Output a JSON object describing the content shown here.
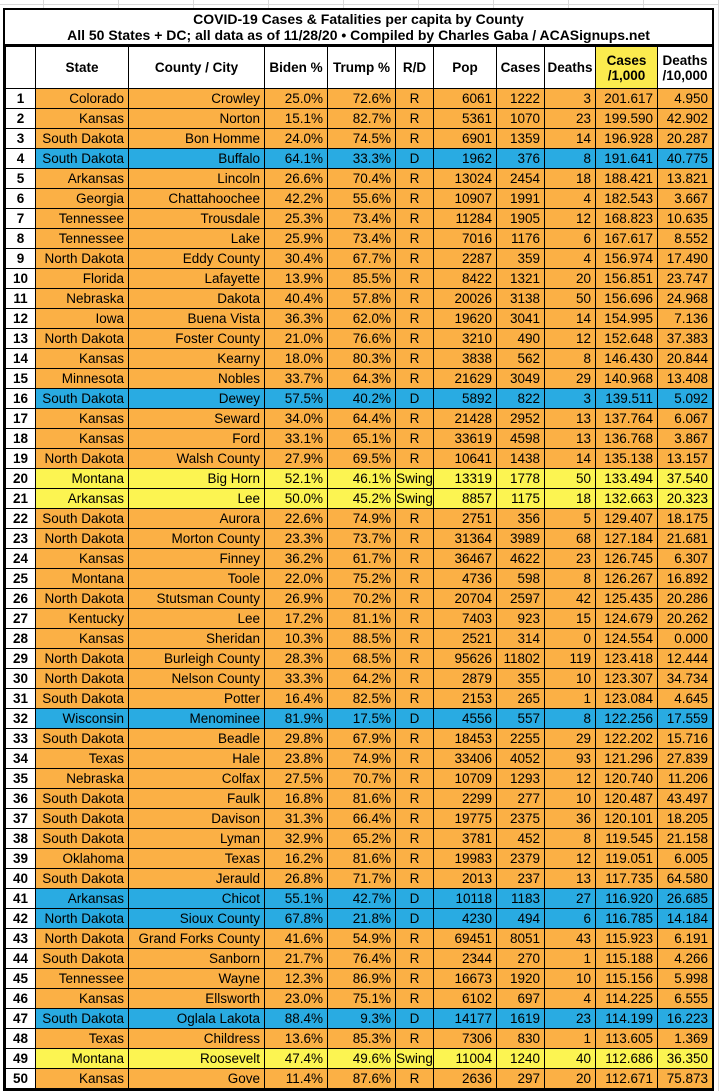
{
  "title": {
    "line1": "COVID-19 Cases & Fatalities per capita by County",
    "line2": "All 50 States + DC; all data as of 11/28/20  • Compiled by Charles Gaba / ACASignups.net"
  },
  "colors": {
    "republican_row": "#FBB045",
    "democrat_row": "#29ABE2",
    "swing_row": "#FCF451",
    "cases_header_highlight": "#FBEB4E",
    "border": "#000000",
    "text": "#000000"
  },
  "chart_data": {
    "type": "table",
    "title": "COVID-19 Cases & Fatalities per capita by County",
    "subtitle": "All 50 States + DC; all data as of 11/28/20  • Compiled by Charles Gaba / ACASignups.net",
    "columns": [
      "",
      "State",
      "County / City",
      "Biden %",
      "Trump %",
      "R/D",
      "Pop",
      "Cases",
      "Deaths",
      "Cases\n/1,000",
      "Deaths\n/10,000"
    ],
    "rows": [
      [
        "1",
        "Colorado",
        "Crowley",
        "25.0%",
        "72.6%",
        "R",
        "6061",
        "1222",
        "3",
        "201.617",
        "4.950"
      ],
      [
        "2",
        "Kansas",
        "Norton",
        "15.1%",
        "82.7%",
        "R",
        "5361",
        "1070",
        "23",
        "199.590",
        "42.902"
      ],
      [
        "3",
        "South Dakota",
        "Bon Homme",
        "24.0%",
        "74.5%",
        "R",
        "6901",
        "1359",
        "14",
        "196.928",
        "20.287"
      ],
      [
        "4",
        "South Dakota",
        "Buffalo",
        "64.1%",
        "33.3%",
        "D",
        "1962",
        "376",
        "8",
        "191.641",
        "40.775"
      ],
      [
        "5",
        "Arkansas",
        "Lincoln",
        "26.6%",
        "70.4%",
        "R",
        "13024",
        "2454",
        "18",
        "188.421",
        "13.821"
      ],
      [
        "6",
        "Georgia",
        "Chattahoochee",
        "42.2%",
        "55.6%",
        "R",
        "10907",
        "1991",
        "4",
        "182.543",
        "3.667"
      ],
      [
        "7",
        "Tennessee",
        "Trousdale",
        "25.3%",
        "73.4%",
        "R",
        "11284",
        "1905",
        "12",
        "168.823",
        "10.635"
      ],
      [
        "8",
        "Tennessee",
        "Lake",
        "25.9%",
        "73.4%",
        "R",
        "7016",
        "1176",
        "6",
        "167.617",
        "8.552"
      ],
      [
        "9",
        "North Dakota",
        "Eddy County",
        "30.4%",
        "67.7%",
        "R",
        "2287",
        "359",
        "4",
        "156.974",
        "17.490"
      ],
      [
        "10",
        "Florida",
        "Lafayette",
        "13.9%",
        "85.5%",
        "R",
        "8422",
        "1321",
        "20",
        "156.851",
        "23.747"
      ],
      [
        "11",
        "Nebraska",
        "Dakota",
        "40.4%",
        "57.8%",
        "R",
        "20026",
        "3138",
        "50",
        "156.696",
        "24.968"
      ],
      [
        "12",
        "Iowa",
        "Buena Vista",
        "36.3%",
        "62.0%",
        "R",
        "19620",
        "3041",
        "14",
        "154.995",
        "7.136"
      ],
      [
        "13",
        "North Dakota",
        "Foster County",
        "21.0%",
        "76.6%",
        "R",
        "3210",
        "490",
        "12",
        "152.648",
        "37.383"
      ],
      [
        "14",
        "Kansas",
        "Kearny",
        "18.0%",
        "80.3%",
        "R",
        "3838",
        "562",
        "8",
        "146.430",
        "20.844"
      ],
      [
        "15",
        "Minnesota",
        "Nobles",
        "33.7%",
        "64.3%",
        "R",
        "21629",
        "3049",
        "29",
        "140.968",
        "13.408"
      ],
      [
        "16",
        "South Dakota",
        "Dewey",
        "57.5%",
        "40.2%",
        "D",
        "5892",
        "822",
        "3",
        "139.511",
        "5.092"
      ],
      [
        "17",
        "Kansas",
        "Seward",
        "34.0%",
        "64.4%",
        "R",
        "21428",
        "2952",
        "13",
        "137.764",
        "6.067"
      ],
      [
        "18",
        "Kansas",
        "Ford",
        "33.1%",
        "65.1%",
        "R",
        "33619",
        "4598",
        "13",
        "136.768",
        "3.867"
      ],
      [
        "19",
        "North Dakota",
        "Walsh County",
        "27.9%",
        "69.5%",
        "R",
        "10641",
        "1438",
        "14",
        "135.138",
        "13.157"
      ],
      [
        "20",
        "Montana",
        "Big Horn",
        "52.1%",
        "46.1%",
        "Swing",
        "13319",
        "1778",
        "50",
        "133.494",
        "37.540"
      ],
      [
        "21",
        "Arkansas",
        "Lee",
        "50.0%",
        "45.2%",
        "Swing",
        "8857",
        "1175",
        "18",
        "132.663",
        "20.323"
      ],
      [
        "22",
        "South Dakota",
        "Aurora",
        "22.6%",
        "74.9%",
        "R",
        "2751",
        "356",
        "5",
        "129.407",
        "18.175"
      ],
      [
        "23",
        "North Dakota",
        "Morton County",
        "23.3%",
        "73.7%",
        "R",
        "31364",
        "3989",
        "68",
        "127.184",
        "21.681"
      ],
      [
        "24",
        "Kansas",
        "Finney",
        "36.2%",
        "61.7%",
        "R",
        "36467",
        "4622",
        "23",
        "126.745",
        "6.307"
      ],
      [
        "25",
        "Montana",
        "Toole",
        "22.0%",
        "75.2%",
        "R",
        "4736",
        "598",
        "8",
        "126.267",
        "16.892"
      ],
      [
        "26",
        "North Dakota",
        "Stutsman County",
        "26.9%",
        "70.2%",
        "R",
        "20704",
        "2597",
        "42",
        "125.435",
        "20.286"
      ],
      [
        "27",
        "Kentucky",
        "Lee",
        "17.2%",
        "81.1%",
        "R",
        "7403",
        "923",
        "15",
        "124.679",
        "20.262"
      ],
      [
        "28",
        "Kansas",
        "Sheridan",
        "10.3%",
        "88.5%",
        "R",
        "2521",
        "314",
        "0",
        "124.554",
        "0.000"
      ],
      [
        "29",
        "North Dakota",
        "Burleigh County",
        "28.3%",
        "68.5%",
        "R",
        "95626",
        "11802",
        "119",
        "123.418",
        "12.444"
      ],
      [
        "30",
        "North Dakota",
        "Nelson County",
        "33.3%",
        "64.2%",
        "R",
        "2879",
        "355",
        "10",
        "123.307",
        "34.734"
      ],
      [
        "31",
        "South Dakota",
        "Potter",
        "16.4%",
        "82.5%",
        "R",
        "2153",
        "265",
        "1",
        "123.084",
        "4.645"
      ],
      [
        "32",
        "Wisconsin",
        "Menominee",
        "81.9%",
        "17.5%",
        "D",
        "4556",
        "557",
        "8",
        "122.256",
        "17.559"
      ],
      [
        "33",
        "South Dakota",
        "Beadle",
        "29.8%",
        "67.9%",
        "R",
        "18453",
        "2255",
        "29",
        "122.202",
        "15.716"
      ],
      [
        "34",
        "Texas",
        "Hale",
        "23.8%",
        "74.9%",
        "R",
        "33406",
        "4052",
        "93",
        "121.296",
        "27.839"
      ],
      [
        "35",
        "Nebraska",
        "Colfax",
        "27.5%",
        "70.7%",
        "R",
        "10709",
        "1293",
        "12",
        "120.740",
        "11.206"
      ],
      [
        "36",
        "South Dakota",
        "Faulk",
        "16.8%",
        "81.6%",
        "R",
        "2299",
        "277",
        "10",
        "120.487",
        "43.497"
      ],
      [
        "37",
        "South Dakota",
        "Davison",
        "31.3%",
        "66.4%",
        "R",
        "19775",
        "2375",
        "36",
        "120.101",
        "18.205"
      ],
      [
        "38",
        "South Dakota",
        "Lyman",
        "32.9%",
        "65.2%",
        "R",
        "3781",
        "452",
        "8",
        "119.545",
        "21.158"
      ],
      [
        "39",
        "Oklahoma",
        "Texas",
        "16.2%",
        "81.6%",
        "R",
        "19983",
        "2379",
        "12",
        "119.051",
        "6.005"
      ],
      [
        "40",
        "South Dakota",
        "Jerauld",
        "26.8%",
        "71.7%",
        "R",
        "2013",
        "237",
        "13",
        "117.735",
        "64.580"
      ],
      [
        "41",
        "Arkansas",
        "Chicot",
        "55.1%",
        "42.7%",
        "D",
        "10118",
        "1183",
        "27",
        "116.920",
        "26.685"
      ],
      [
        "42",
        "North Dakota",
        "Sioux County",
        "67.8%",
        "21.8%",
        "D",
        "4230",
        "494",
        "6",
        "116.785",
        "14.184"
      ],
      [
        "43",
        "North Dakota",
        "Grand Forks County",
        "41.6%",
        "54.9%",
        "R",
        "69451",
        "8051",
        "43",
        "115.923",
        "6.191"
      ],
      [
        "44",
        "South Dakota",
        "Sanborn",
        "21.7%",
        "76.4%",
        "R",
        "2344",
        "270",
        "1",
        "115.188",
        "4.266"
      ],
      [
        "45",
        "Tennessee",
        "Wayne",
        "12.3%",
        "86.9%",
        "R",
        "16673",
        "1920",
        "10",
        "115.156",
        "5.998"
      ],
      [
        "46",
        "Kansas",
        "Ellsworth",
        "23.0%",
        "75.1%",
        "R",
        "6102",
        "697",
        "4",
        "114.225",
        "6.555"
      ],
      [
        "47",
        "South Dakota",
        "Oglala Lakota",
        "88.4%",
        "9.3%",
        "D",
        "14177",
        "1619",
        "23",
        "114.199",
        "16.223"
      ],
      [
        "48",
        "Texas",
        "Childress",
        "13.6%",
        "85.3%",
        "R",
        "7306",
        "830",
        "1",
        "113.605",
        "1.369"
      ],
      [
        "49",
        "Montana",
        "Roosevelt",
        "47.4%",
        "49.6%",
        "Swing",
        "11004",
        "1240",
        "40",
        "112.686",
        "36.350"
      ],
      [
        "50",
        "Kansas",
        "Gove",
        "11.4%",
        "87.6%",
        "R",
        "2636",
        "297",
        "20",
        "112.671",
        "75.873"
      ]
    ]
  }
}
